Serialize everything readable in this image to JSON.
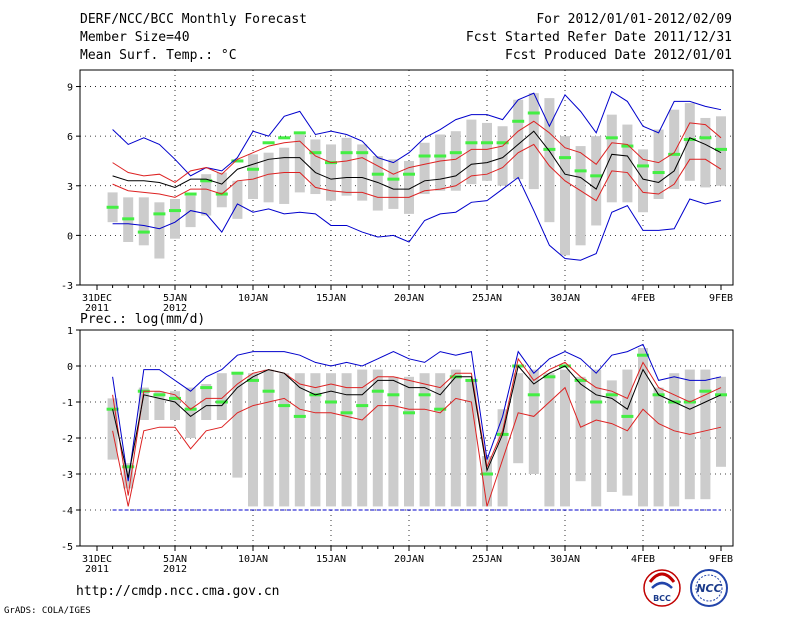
{
  "header": {
    "title": "DERF/NCC/BCC Monthly Forecast",
    "member_size": "Member Size=40",
    "variable_top": "Mean Surf. Temp.: °C",
    "period": "For 2012/01/01-2012/02/09",
    "start_date": "Fcst Started Refer Date 2011/12/31",
    "produced_date": "Fcst Produced Date 2012/01/01"
  },
  "footer": {
    "url": "http://cmdp.ncc.cma.gov.cn",
    "grads": "GrADS: COLA/IGES",
    "logo_bcc": "BCC",
    "logo_ncc": "NCC"
  },
  "colors": {
    "box": "#cccccc",
    "median": "#44ee44",
    "mean": "#000000",
    "band": "#dd2222",
    "envelope": "#0000cc"
  },
  "x_ticks": [
    {
      "day": 0,
      "label": "31DEC",
      "sub": "2011"
    },
    {
      "day": 5,
      "label": "5JAN",
      "sub": "2012"
    },
    {
      "day": 10,
      "label": "10JAN",
      "sub": ""
    },
    {
      "day": 15,
      "label": "15JAN",
      "sub": ""
    },
    {
      "day": 20,
      "label": "20JAN",
      "sub": ""
    },
    {
      "day": 25,
      "label": "25JAN",
      "sub": ""
    },
    {
      "day": 30,
      "label": "30JAN",
      "sub": ""
    },
    {
      "day": 35,
      "label": "4FEB",
      "sub": ""
    },
    {
      "day": 40,
      "label": "9FEB",
      "sub": ""
    }
  ],
  "chart_data": [
    {
      "type": "box-ensemble",
      "title": "Mean Surf. Temp.: °C",
      "ylabel": "°C",
      "ylim": [
        -3,
        10
      ],
      "yticks": [
        -3,
        0,
        3,
        6,
        9
      ],
      "x_start_day": 0,
      "x_end_day": 40,
      "days": [
        1,
        2,
        3,
        4,
        5,
        6,
        7,
        8,
        9,
        10,
        11,
        12,
        13,
        14,
        15,
        16,
        17,
        18,
        19,
        20,
        21,
        22,
        23,
        24,
        25,
        26,
        27,
        28,
        29,
        30,
        31,
        32,
        33,
        34,
        35,
        36,
        37,
        38,
        39,
        40
      ],
      "box_low": [
        0.8,
        -0.4,
        -0.6,
        -1.4,
        -0.2,
        0.5,
        1.2,
        1.7,
        1.0,
        2.2,
        2.0,
        1.9,
        2.6,
        2.5,
        2.1,
        2.4,
        2.1,
        1.5,
        1.6,
        1.3,
        2.5,
        2.7,
        2.7,
        3.1,
        3.3,
        3.0,
        3.4,
        2.8,
        0.8,
        -1.2,
        -0.6,
        0.6,
        2.0,
        2.0,
        1.4,
        2.2,
        2.8,
        3.3,
        2.9,
        3.0
      ],
      "box_high": [
        2.6,
        2.3,
        2.3,
        2.0,
        2.2,
        2.4,
        3.7,
        3.8,
        3.3,
        4.9,
        5.0,
        5.3,
        6.1,
        5.8,
        5.5,
        5.9,
        5.5,
        4.8,
        4.6,
        4.5,
        5.6,
        6.1,
        6.3,
        7.0,
        6.8,
        6.6,
        8.2,
        8.6,
        8.3,
        6.0,
        5.4,
        6.0,
        7.3,
        6.7,
        5.2,
        6.4,
        7.6,
        8.0,
        7.1,
        7.2
      ],
      "median": [
        1.7,
        1.0,
        0.2,
        1.3,
        1.5,
        2.5,
        3.3,
        2.5,
        4.5,
        4.0,
        5.6,
        5.9,
        6.2,
        5.0,
        4.4,
        5.0,
        5.0,
        3.7,
        3.4,
        3.7,
        4.8,
        4.8,
        5.0,
        5.6,
        5.6,
        5.6,
        6.9,
        7.4,
        5.2,
        4.7,
        3.9,
        3.6,
        5.9,
        5.4,
        4.2,
        3.8,
        4.9,
        5.8,
        5.9,
        5.2
      ],
      "series": [
        {
          "name": "ensemble max",
          "style": "envelope",
          "values": [
            6.4,
            5.5,
            5.9,
            5.5,
            4.6,
            3.6,
            4.1,
            3.9,
            4.7,
            6.3,
            6.0,
            7.2,
            7.5,
            6.1,
            6.3,
            6.1,
            5.7,
            4.7,
            4.4,
            5.0,
            5.9,
            6.4,
            7.0,
            7.3,
            7.3,
            7.0,
            8.2,
            8.6,
            6.6,
            8.5,
            7.5,
            6.2,
            8.7,
            8.1,
            6.6,
            6.2,
            8.1,
            8.1,
            7.8,
            7.6
          ]
        },
        {
          "name": "upper band",
          "style": "band",
          "values": [
            4.4,
            3.8,
            3.6,
            3.7,
            3.2,
            3.9,
            4.1,
            3.7,
            4.6,
            5.0,
            5.4,
            5.6,
            5.7,
            4.8,
            4.4,
            4.5,
            4.7,
            4.2,
            3.7,
            4.1,
            4.3,
            4.5,
            4.6,
            5.2,
            5.2,
            5.4,
            6.3,
            6.9,
            6.2,
            5.3,
            5.0,
            4.3,
            5.6,
            5.5,
            4.6,
            4.4,
            5.0,
            6.8,
            6.7,
            5.9
          ]
        },
        {
          "name": "ensemble mean",
          "style": "mean",
          "values": [
            3.6,
            3.3,
            3.3,
            3.2,
            2.9,
            3.4,
            3.4,
            3.1,
            4.0,
            4.3,
            4.6,
            4.7,
            4.7,
            3.8,
            3.4,
            3.5,
            3.5,
            3.2,
            2.8,
            2.8,
            3.3,
            3.4,
            3.6,
            4.3,
            4.4,
            4.7,
            5.5,
            6.3,
            5.1,
            3.7,
            3.5,
            2.8,
            4.9,
            4.8,
            3.4,
            3.2,
            3.9,
            5.9,
            5.5,
            5.0
          ]
        },
        {
          "name": "lower band",
          "style": "band",
          "values": [
            3.1,
            2.7,
            2.6,
            2.5,
            2.3,
            2.8,
            2.8,
            2.5,
            3.3,
            3.4,
            3.7,
            3.8,
            3.8,
            2.9,
            2.7,
            2.6,
            2.6,
            2.3,
            2.3,
            2.3,
            2.7,
            2.8,
            3.0,
            3.6,
            3.7,
            4.1,
            5.0,
            5.5,
            4.2,
            3.3,
            2.7,
            2.1,
            3.9,
            3.8,
            2.6,
            2.5,
            3.1,
            4.6,
            4.6,
            4.0
          ]
        },
        {
          "name": "ensemble min",
          "style": "envelope",
          "values": [
            0.7,
            0.7,
            0.6,
            0.4,
            0.8,
            1.5,
            1.3,
            0.2,
            1.9,
            1.4,
            1.6,
            1.3,
            1.4,
            1.3,
            0.6,
            0.6,
            0.2,
            -0.1,
            0.0,
            -0.4,
            0.9,
            1.3,
            1.4,
            2.0,
            2.1,
            2.8,
            3.5,
            1.5,
            -0.6,
            -1.4,
            -1.5,
            -1.1,
            1.4,
            1.8,
            0.3,
            0.3,
            0.4,
            2.2,
            1.9,
            2.1
          ]
        }
      ]
    },
    {
      "type": "box-ensemble",
      "title": "Prec.: log(mm/d)",
      "ylabel": "log(mm/d)",
      "ylim": [
        -5,
        1
      ],
      "yticks": [
        -5,
        -4,
        -3,
        -2,
        -1,
        0,
        1
      ],
      "x_start_day": 0,
      "x_end_day": 40,
      "days": [
        1,
        2,
        3,
        4,
        5,
        6,
        7,
        8,
        9,
        10,
        11,
        12,
        13,
        14,
        15,
        16,
        17,
        18,
        19,
        20,
        21,
        22,
        23,
        24,
        25,
        26,
        27,
        28,
        29,
        30,
        31,
        32,
        33,
        34,
        35,
        36,
        37,
        38,
        39,
        40
      ],
      "box_low": [
        -2.6,
        -3.4,
        -1.5,
        -1.5,
        -1.5,
        -2.0,
        -1.5,
        -1.5,
        -3.1,
        -3.9,
        -3.9,
        -3.9,
        -3.9,
        -3.9,
        -3.9,
        -3.9,
        -3.9,
        -3.9,
        -3.9,
        -3.9,
        -3.9,
        -3.9,
        -3.9,
        -3.9,
        -3.9,
        -3.9,
        -2.7,
        -3.0,
        -3.9,
        -3.9,
        -3.2,
        -3.9,
        -3.5,
        -3.6,
        -3.9,
        -3.9,
        -3.9,
        -3.7,
        -3.7,
        -2.8
      ],
      "box_high": [
        -0.9,
        -2.7,
        -0.6,
        -0.7,
        -0.7,
        -0.6,
        -0.5,
        -0.2,
        -0.2,
        -0.2,
        -0.1,
        -0.2,
        -0.2,
        -0.2,
        -0.2,
        -0.2,
        -0.1,
        -0.1,
        -0.3,
        -0.3,
        -0.2,
        -0.2,
        -0.1,
        -0.4,
        -2.5,
        -1.2,
        -0.2,
        -0.1,
        -0.2,
        -0.1,
        -0.3,
        -0.1,
        -0.4,
        -0.1,
        0.5,
        -0.6,
        -0.2,
        -0.1,
        -0.1,
        -0.3
      ],
      "median": [
        -1.2,
        -2.8,
        -0.7,
        -0.8,
        -0.9,
        -1.2,
        -0.6,
        -1.0,
        -0.2,
        -0.4,
        -0.7,
        -1.1,
        -1.4,
        -0.8,
        -1.0,
        -1.3,
        -1.1,
        -0.7,
        -0.8,
        -1.3,
        -0.8,
        -1.2,
        -0.3,
        -0.4,
        -3.0,
        -1.9,
        0.0,
        -0.8,
        -0.3,
        0.0,
        -0.4,
        -1.0,
        -0.8,
        -1.4,
        0.3,
        -0.8,
        -1.0,
        -1.0,
        -0.7,
        -0.8
      ],
      "series": [
        {
          "name": "ensemble max",
          "style": "envelope",
          "values": [
            -0.3,
            -3.2,
            -0.1,
            -0.1,
            -0.4,
            -0.7,
            -0.3,
            -0.1,
            0.3,
            0.4,
            0.4,
            0.4,
            0.3,
            0.1,
            0.0,
            0.1,
            0.0,
            0.2,
            0.4,
            0.2,
            0.1,
            0.4,
            0.3,
            0.4,
            -2.6,
            -1.4,
            0.4,
            -0.2,
            0.2,
            0.4,
            0.2,
            -0.2,
            0.3,
            0.4,
            0.6,
            -0.4,
            -0.3,
            -0.4,
            -0.4,
            -0.3
          ]
        },
        {
          "name": "upper band",
          "style": "band",
          "values": [
            -0.8,
            -3.6,
            -0.7,
            -0.7,
            -0.8,
            -1.2,
            -0.9,
            -0.9,
            -0.5,
            -0.2,
            -0.1,
            -0.2,
            -0.5,
            -0.6,
            -0.5,
            -0.6,
            -0.6,
            -0.3,
            -0.3,
            -0.4,
            -0.5,
            -0.6,
            -0.2,
            -0.2,
            -2.8,
            -1.8,
            0.2,
            -0.4,
            -0.1,
            0.1,
            -0.3,
            -0.6,
            -0.7,
            -0.9,
            0.1,
            -0.6,
            -0.8,
            -1.0,
            -0.8,
            -0.6
          ]
        },
        {
          "name": "ensemble mean",
          "style": "mean",
          "values": [
            -1.2,
            -3.1,
            -0.8,
            -0.9,
            -1.0,
            -1.4,
            -1.1,
            -1.1,
            -0.6,
            -0.3,
            -0.1,
            -0.2,
            -0.6,
            -0.8,
            -0.7,
            -0.8,
            -0.8,
            -0.4,
            -0.4,
            -0.6,
            -0.6,
            -0.8,
            -0.3,
            -0.3,
            -2.9,
            -1.9,
            0.0,
            -0.5,
            -0.2,
            0.0,
            -0.5,
            -0.8,
            -0.9,
            -1.2,
            -0.1,
            -0.8,
            -1.0,
            -1.2,
            -1.0,
            -0.8
          ]
        },
        {
          "name": "lower band",
          "style": "band",
          "values": [
            -1.8,
            -3.9,
            -1.8,
            -1.7,
            -1.7,
            -2.3,
            -1.8,
            -1.7,
            -1.3,
            -1.1,
            -1.0,
            -0.9,
            -1.2,
            -1.3,
            -1.3,
            -1.4,
            -1.5,
            -1.1,
            -1.1,
            -1.2,
            -1.2,
            -1.3,
            -0.9,
            -1.0,
            -3.9,
            -2.6,
            -1.3,
            -1.4,
            -1.0,
            -0.6,
            -1.7,
            -1.5,
            -1.6,
            -1.8,
            -1.2,
            -1.6,
            -1.8,
            -1.9,
            -1.8,
            -1.7
          ]
        },
        {
          "name": "ensemble min",
          "style": "envelope",
          "values": [
            -4.0,
            -4.0,
            -4.0,
            -4.0,
            -4.0,
            -4.0,
            -4.0,
            -4.0,
            -4.0,
            -4.0,
            -4.0,
            -4.0,
            -4.0,
            -4.0,
            -4.0,
            -4.0,
            -4.0,
            -4.0,
            -4.0,
            -4.0,
            -4.0,
            -4.0,
            -4.0,
            -4.0,
            -4.0,
            -4.0,
            -4.0,
            -4.0,
            -4.0,
            -4.0,
            -4.0,
            -4.0,
            -4.0,
            -4.0,
            -4.0,
            -4.0,
            -4.0,
            -4.0,
            -4.0,
            -4.0
          ]
        }
      ]
    }
  ]
}
